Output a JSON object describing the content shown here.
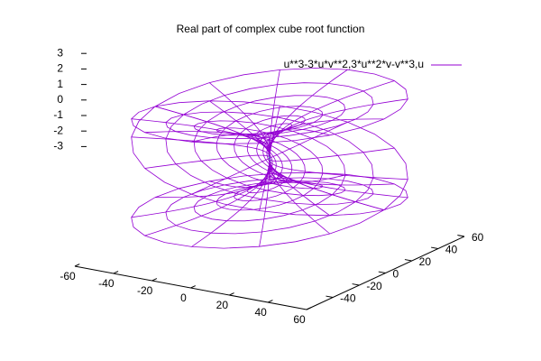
{
  "chart_data": {
    "type": "surface",
    "title": "Real part of complex cube root function",
    "series": [
      {
        "name": "u**3-3*u*v**2,3*u**2*v-v**3,u",
        "color": "#9400d3"
      }
    ],
    "xlim": [
      -60,
      60
    ],
    "xticks": [
      -60,
      -40,
      -20,
      0,
      20,
      40,
      60
    ],
    "ylim": [
      -60,
      60
    ],
    "yticks": [
      -40,
      -20,
      0,
      20,
      40,
      60
    ],
    "zlim": [
      -3,
      3
    ],
    "zticks": [
      -3,
      -2,
      -1,
      0,
      1,
      2,
      3
    ]
  }
}
